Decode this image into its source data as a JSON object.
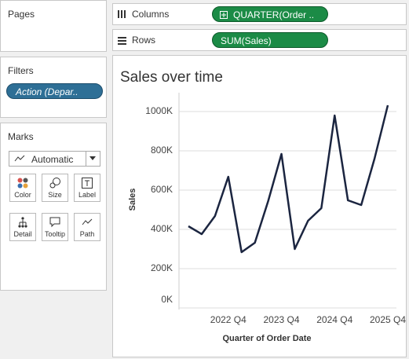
{
  "ui": {
    "pages": "Pages",
    "shelves": {
      "columns": {
        "label": "Columns",
        "pill": "QUARTER(Order .."
      },
      "rows": {
        "label": "Rows",
        "pill": "SUM(Sales)"
      }
    },
    "filters": {
      "title": "Filters",
      "pills": [
        "Action (Depar.."
      ]
    },
    "marks": {
      "title": "Marks",
      "mark_type": "Automatic",
      "cards": [
        "Color",
        "Size",
        "Label",
        "Detail",
        "Tooltip",
        "Path"
      ]
    }
  },
  "chart_data": {
    "type": "line",
    "title": "Sales over time",
    "x_label": "Quarter of Order Date",
    "y_label": "Sales",
    "categories": [
      null,
      null,
      null,
      "2022 Q4",
      null,
      null,
      null,
      "2023 Q4",
      null,
      null,
      null,
      "2024 Q4",
      null,
      null,
      null,
      "2025 Q4"
    ],
    "series": [
      {
        "name": "Sales",
        "color": "#1b2540",
        "values": [
          416000,
          376000,
          468000,
          668000,
          284000,
          332000,
          544000,
          784000,
          300000,
          444000,
          508000,
          980000,
          548000,
          524000,
          760000,
          1032000
        ]
      }
    ],
    "ylim": [
      0,
      1100000
    ],
    "yticks": [
      {
        "value": 0,
        "label": "0K"
      },
      {
        "value": 200000,
        "label": "200K"
      },
      {
        "value": 400000,
        "label": "400K"
      },
      {
        "value": 600000,
        "label": "600K"
      },
      {
        "value": 800000,
        "label": "800K"
      },
      {
        "value": 1000000,
        "label": "1000K"
      }
    ],
    "grid": true
  }
}
